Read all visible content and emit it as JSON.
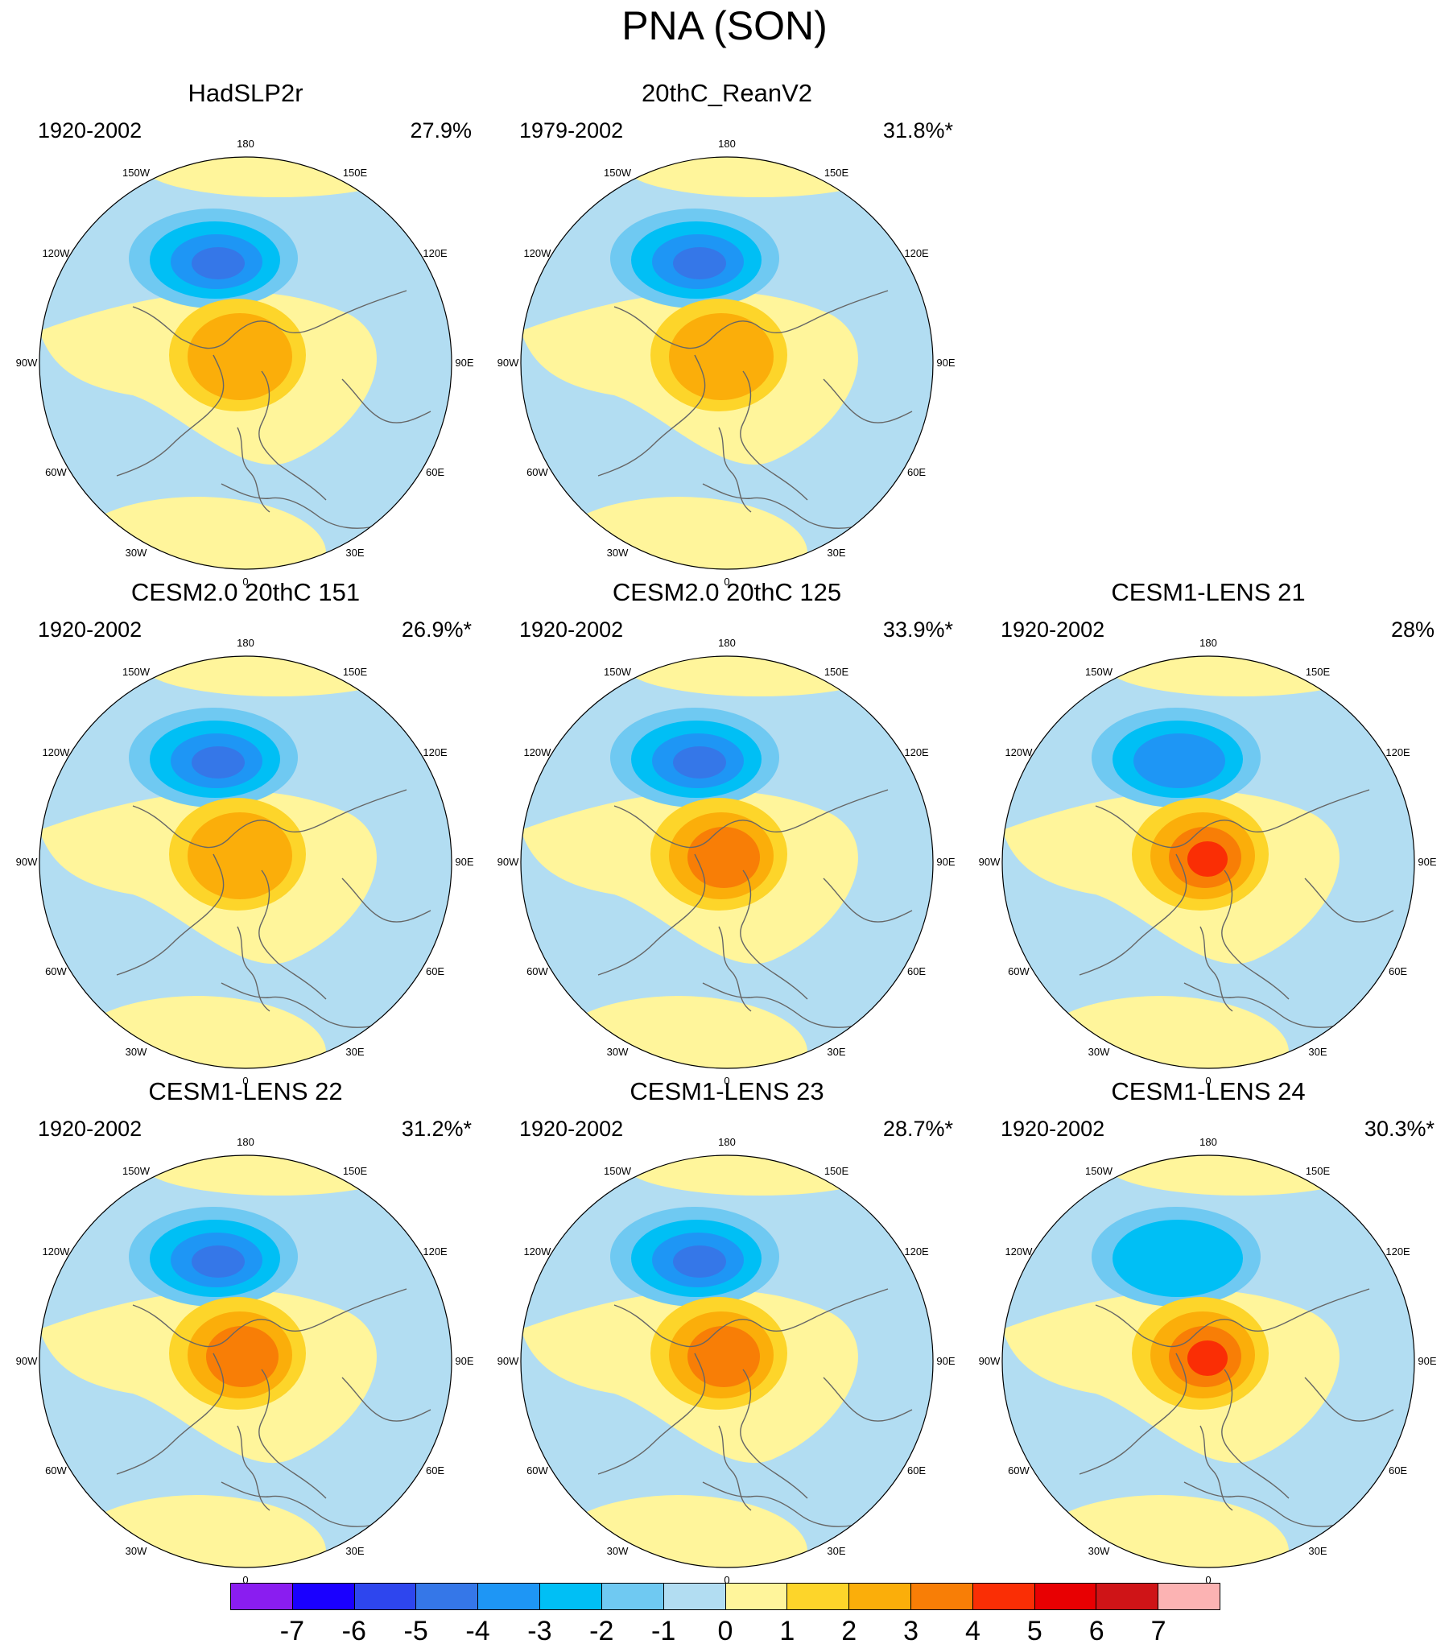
{
  "figure": {
    "title": "PNA (SON)"
  },
  "longitude_labels": [
    "180",
    "150E",
    "120E",
    "90E",
    "60E",
    "30E",
    "0",
    "30W",
    "60W",
    "90W",
    "120W",
    "150W"
  ],
  "panels": [
    {
      "title": "HadSLP2r",
      "period": "1920-2002",
      "percent": "27.9%",
      "neg_center_value": -4,
      "pos_center_value": 2
    },
    {
      "title": "20thC_ReanV2",
      "period": "1979-2002",
      "percent": "31.8%*",
      "neg_center_value": -4,
      "pos_center_value": 2
    },
    {
      "title": "CESM2.0 20thC 151",
      "period": "1920-2002",
      "percent": "26.9%*",
      "neg_center_value": -4,
      "pos_center_value": 2
    },
    {
      "title": "CESM2.0 20thC 125",
      "period": "1920-2002",
      "percent": "33.9%*",
      "neg_center_value": -4,
      "pos_center_value": 3
    },
    {
      "title": "CESM1-LENS 21",
      "period": "1920-2002",
      "percent": "28%",
      "neg_center_value": -3,
      "pos_center_value": 4
    },
    {
      "title": "CESM1-LENS 22",
      "period": "1920-2002",
      "percent": "31.2%*",
      "neg_center_value": -4,
      "pos_center_value": 3
    },
    {
      "title": "CESM1-LENS 23",
      "period": "1920-2002",
      "percent": "28.7%*",
      "neg_center_value": -4,
      "pos_center_value": 3
    },
    {
      "title": "CESM1-LENS 24",
      "period": "1920-2002",
      "percent": "30.3%*",
      "neg_center_value": -2,
      "pos_center_value": 4
    }
  ],
  "colorbar": {
    "ticks": [
      "-7",
      "-6",
      "-5",
      "-4",
      "-3",
      "-2",
      "-1",
      "0",
      "1",
      "2",
      "3",
      "4",
      "5",
      "6",
      "7"
    ],
    "colors": [
      "#8a1df0",
      "#1a00ff",
      "#2e46ee",
      "#3577e8",
      "#1e96f5",
      "#00bff5",
      "#6fc9f2",
      "#b2ddf2",
      "#fff59b",
      "#fdd52a",
      "#fbae0a",
      "#f87e06",
      "#fa2e05",
      "#e80002",
      "#cf1417",
      "#fcb3b3"
    ]
  }
}
